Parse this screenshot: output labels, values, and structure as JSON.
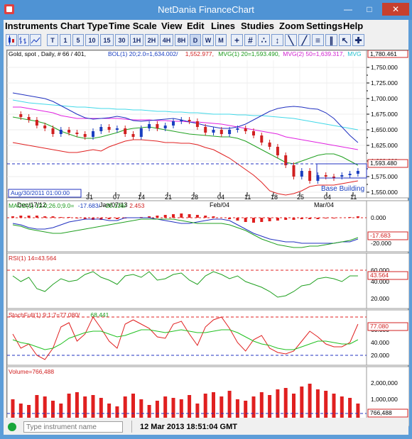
{
  "window": {
    "title": "NetDania FinanceChart"
  },
  "menu": [
    "Instruments",
    "Chart Type",
    "Time Scale",
    "View",
    "Edit",
    "Lines",
    "Studies",
    "Zoom",
    "Settings",
    "Help"
  ],
  "toolbar": {
    "range_buttons": [
      "T",
      "1",
      "5",
      "10",
      "15",
      "30",
      "1H",
      "2H",
      "4H",
      "8H",
      "D",
      "W",
      "M"
    ],
    "selected_range": "D"
  },
  "chart": {
    "header_parts": [
      {
        "text": "Gold, spot , Daily, # 66 / 401,",
        "color": "#000000"
      },
      {
        "text": "BOL(1) 20;2.0=1,634.002/",
        "color": "#1a3fc0"
      },
      {
        "text": "1,552.977,",
        "color": "#d02020"
      },
      {
        "text": "MVG(1) 20=1,593.490,",
        "color": "#1a9a1a"
      },
      {
        "text": "MVG(2) 50=1,639.317,",
        "color": "#d020d0"
      },
      {
        "text": "MVG",
        "color": "#20c0d0"
      }
    ],
    "last_price_box": "1,780.461",
    "current_price_box": "1,593.480",
    "cursor_time": "Aug/30/2011 01:00:00",
    "annotation": "Base Building",
    "price_axis": [
      "1,750.000",
      "1,725.000",
      "1,700.000",
      "1,675.000",
      "1,650.000",
      "1,625.000",
      "1,600.000",
      "1,575.000",
      "1,550.000"
    ],
    "date_axis_top": [
      "31",
      "07",
      "14",
      "21",
      "28",
      "04",
      "11",
      "18",
      "25",
      "04",
      "11"
    ],
    "date_axis_bottom": [
      "Dec/17/12",
      "Jan/07/13",
      "Feb/04",
      "Mar/04"
    ],
    "accent": "#1a3fc0"
  },
  "macd": {
    "header_parts": [
      {
        "text": "MACD(1) 12.0;26.0;9.0=",
        "color": "#1a9a1a"
      },
      {
        "text": "-17.683/",
        "color": "#1a3fc0"
      },
      {
        "text": "-20.136/",
        "color": "#1a9a1a"
      },
      {
        "text": "2.453",
        "color": "#d02020"
      }
    ],
    "axis": [
      "0.000",
      "-20.000"
    ],
    "value_box": "-17.683"
  },
  "rsi": {
    "header": "RSI(1) 14=43.564",
    "axis": [
      "60.000",
      "40.000",
      "20.000"
    ],
    "value_box": "43.564"
  },
  "stoch": {
    "header_parts": [
      {
        "text": "StochFull(1) 9;1;7=77.080/",
        "color": "#d02020"
      },
      {
        "text": "68.441",
        "color": "#1a9a1a"
      }
    ],
    "axis": [
      "80.000",
      "60.000",
      "40.000",
      "20.000"
    ],
    "value_box": "77.080"
  },
  "volume": {
    "header": "Volume=766,488",
    "axis": [
      "2,000,000",
      "1,000,000",
      "0"
    ],
    "value_box": "766,488"
  },
  "status": {
    "search_placeholder": "Type instrument name",
    "timestamp": "12 Mar 2013 18:51:04 GMT"
  }
}
